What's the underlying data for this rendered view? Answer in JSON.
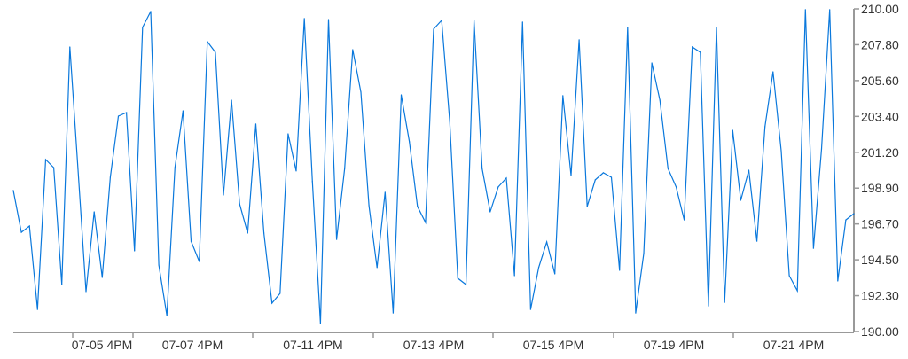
{
  "chart_data": {
    "type": "line",
    "title": "",
    "xlabel": "",
    "ylabel": "",
    "ylim": [
      190,
      210
    ],
    "y_ticks": [
      "190.00",
      "192.30",
      "194.50",
      "196.70",
      "198.90",
      "201.20",
      "203.40",
      "205.60",
      "207.80",
      "210.00"
    ],
    "x_tick_labels": [
      "07-05 4PM",
      "07-07 4PM",
      "07-11 4PM",
      "07-13 4PM",
      "07-15 4PM",
      "07-19 4PM",
      "07-21 4PM"
    ],
    "y_axis_position": "right",
    "grid": false,
    "line_color": "#0a78dc",
    "axis_color": "#999999",
    "values": [
      198.74,
      196.15,
      196.54,
      191.37,
      200.66,
      200.16,
      192.91,
      207.64,
      200.11,
      192.47,
      197.42,
      193.35,
      199.56,
      203.35,
      203.57,
      195.0,
      208.85,
      209.84,
      194.12,
      190.99,
      200.16,
      203.68,
      195.6,
      194.34,
      207.97,
      207.31,
      198.46,
      204.34,
      197.91,
      196.1,
      202.86,
      196.1,
      191.76,
      192.36,
      202.25,
      199.95,
      209.4,
      199.29,
      190.49,
      209.34,
      195.71,
      200.11,
      207.47,
      204.84,
      197.8,
      193.96,
      198.63,
      191.15,
      204.67,
      201.76,
      197.75,
      196.76,
      208.74,
      209.29,
      203.02,
      193.3,
      192.91,
      209.29,
      200.11,
      197.42,
      198.96,
      199.51,
      193.46,
      209.18,
      191.37,
      193.96,
      195.55,
      193.57,
      204.62,
      199.67,
      208.08,
      197.75,
      199.4,
      199.84,
      199.56,
      193.79,
      208.85,
      191.15,
      194.84,
      206.65,
      204.34,
      200.11,
      198.96,
      196.92,
      207.64,
      207.31,
      191.59,
      208.85,
      191.81,
      202.47,
      198.13,
      200.0,
      195.6,
      202.69,
      206.1,
      201.21,
      193.46,
      192.53,
      209.95,
      195.16,
      201.32,
      209.95,
      193.13,
      196.92,
      197.31
    ]
  }
}
